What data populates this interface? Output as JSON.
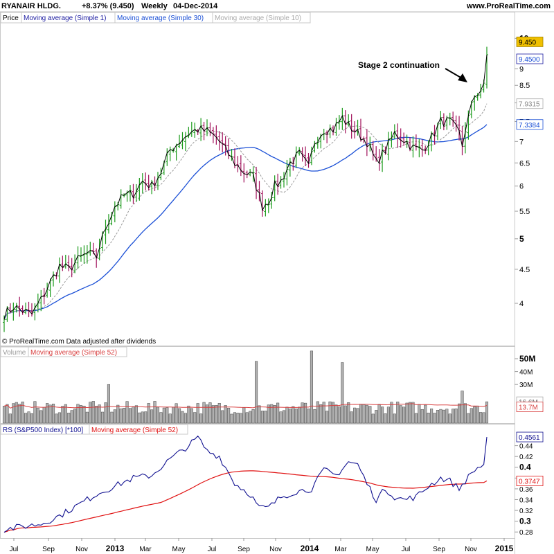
{
  "header": {
    "symbol": "RYANAIR HLDG.",
    "change": "+8.37% (9.450)",
    "period": "Weekly",
    "date": "04-Dec-2014",
    "site": "www.ProRealTime.com"
  },
  "panels": {
    "price": {
      "tabs": [
        "Price",
        "Moving average (Simple 1)",
        "Moving average (Simple 30)",
        "Moving average (Simple 10)"
      ],
      "footer": "© ProRealTime.com  Data adjusted after dividends",
      "annotation": "Stage 2 continuation",
      "value_labels": [
        "9.450",
        "9.4500",
        "7.9315",
        "7.3384"
      ]
    },
    "volume": {
      "tabs": [
        "Volume",
        "Moving average (Simple 52)"
      ],
      "value_labels": [
        "16.6M",
        "13.7M"
      ]
    },
    "rs": {
      "tabs": [
        "RS (S&P500 Index) [*100]",
        "Moving average (Simple 52)"
      ],
      "value_labels": [
        "0.4561",
        "0.3747"
      ]
    }
  },
  "colors": {
    "up": "#1a9a1a",
    "down": "#a0105a",
    "close_line": "#000000",
    "ma30": "#1a4fd6",
    "ma10": "#999999",
    "volume_bar": "#b0b0b0",
    "volume_ma": "#d84040",
    "rs_line": "#101090",
    "rs_ma": "#e01010",
    "highlight": "#f0c000"
  },
  "chart_data": [
    {
      "type": "line",
      "panel": "price",
      "title": "RYANAIR HLDG.",
      "y_scale": "log",
      "ylim": [
        3.6,
        10.5
      ],
      "yticks": [
        4,
        4.5,
        5,
        5.5,
        6,
        6.5,
        7,
        7.5,
        8,
        8.5,
        9,
        10
      ],
      "x_labels": [
        "Jul",
        "Sep",
        "Nov",
        "2013",
        "Mar",
        "May",
        "Jul",
        "Sep",
        "Nov",
        "2014",
        "Mar",
        "May",
        "Jul",
        "Sep",
        "Nov",
        "2015"
      ],
      "price_anchors": [
        [
          0,
          3.85
        ],
        [
          3,
          3.95
        ],
        [
          6,
          3.9
        ],
        [
          9,
          3.85
        ],
        [
          12,
          4.05
        ],
        [
          15,
          4.3
        ],
        [
          18,
          4.55
        ],
        [
          21,
          4.5
        ],
        [
          24,
          4.65
        ],
        [
          27,
          4.75
        ],
        [
          30,
          4.7
        ],
        [
          33,
          5.2
        ],
        [
          36,
          5.6
        ],
        [
          39,
          5.8
        ],
        [
          42,
          5.85
        ],
        [
          45,
          6.1
        ],
        [
          48,
          6.0
        ],
        [
          51,
          6.3
        ],
        [
          54,
          6.8
        ],
        [
          57,
          7.0
        ],
        [
          60,
          7.2
        ],
        [
          63,
          7.3
        ],
        [
          66,
          7.25
        ],
        [
          69,
          7.1
        ],
        [
          72,
          6.8
        ],
        [
          75,
          6.5
        ],
        [
          78,
          6.3
        ],
        [
          81,
          6.2
        ],
        [
          84,
          5.6
        ],
        [
          86,
          5.7
        ],
        [
          88,
          6.0
        ],
        [
          90,
          6.1
        ],
        [
          93,
          6.5
        ],
        [
          96,
          6.7
        ],
        [
          99,
          6.4
        ],
        [
          101,
          7.0
        ],
        [
          104,
          7.3
        ],
        [
          107,
          7.3
        ],
        [
          110,
          7.6
        ],
        [
          112,
          7.4
        ],
        [
          115,
          7.2
        ],
        [
          118,
          7.0
        ],
        [
          121,
          6.5
        ],
        [
          124,
          6.8
        ],
        [
          127,
          7.2
        ],
        [
          130,
          7.05
        ],
        [
          133,
          6.85
        ],
        [
          136,
          6.8
        ],
        [
          139,
          7.1
        ],
        [
          142,
          7.5
        ],
        [
          145,
          7.5
        ],
        [
          148,
          7.2
        ],
        [
          149,
          6.9
        ],
        [
          150,
          7.3
        ],
        [
          153,
          8.2
        ],
        [
          156,
          8.45
        ],
        [
          157,
          9.45
        ]
      ],
      "series": [
        {
          "name": "Moving average (Simple 1)"
        },
        {
          "name": "Moving average (Simple 30)",
          "last": 7.3384
        },
        {
          "name": "Moving average (Simple 10)",
          "last": 7.9315
        }
      ],
      "last_price": 9.45
    },
    {
      "type": "bar",
      "panel": "volume",
      "title": "Volume",
      "ylim": [
        0,
        50
      ],
      "yticks_labels": [
        "50M",
        "40M",
        "30M"
      ],
      "series": [
        {
          "name": "Moving average (Simple 52)",
          "last": 13.7
        }
      ],
      "last_volume": 16.6,
      "spikes": [
        [
          34,
          30
        ],
        [
          82,
          48
        ],
        [
          100,
          56
        ],
        [
          110,
          47
        ],
        [
          149,
          25
        ]
      ]
    },
    {
      "type": "line",
      "panel": "rs",
      "title": "RS (S&P500 Index) [*100]",
      "ylim": [
        0.27,
        0.46
      ],
      "yticks": [
        0.28,
        0.3,
        0.32,
        0.34,
        0.36,
        0.38,
        0.4,
        0.42,
        0.44
      ],
      "rs_anchors": [
        [
          0,
          0.285
        ],
        [
          6,
          0.29
        ],
        [
          12,
          0.295
        ],
        [
          18,
          0.31
        ],
        [
          24,
          0.33
        ],
        [
          30,
          0.35
        ],
        [
          36,
          0.365
        ],
        [
          42,
          0.38
        ],
        [
          48,
          0.385
        ],
        [
          54,
          0.415
        ],
        [
          60,
          0.44
        ],
        [
          63,
          0.455
        ],
        [
          66,
          0.43
        ],
        [
          70,
          0.42
        ],
        [
          75,
          0.37
        ],
        [
          80,
          0.35
        ],
        [
          83,
          0.325
        ],
        [
          86,
          0.325
        ],
        [
          90,
          0.345
        ],
        [
          95,
          0.355
        ],
        [
          100,
          0.36
        ],
        [
          104,
          0.395
        ],
        [
          108,
          0.385
        ],
        [
          112,
          0.41
        ],
        [
          115,
          0.405
        ],
        [
          118,
          0.37
        ],
        [
          121,
          0.34
        ],
        [
          124,
          0.36
        ],
        [
          127,
          0.345
        ],
        [
          130,
          0.34
        ],
        [
          134,
          0.345
        ],
        [
          138,
          0.365
        ],
        [
          142,
          0.38
        ],
        [
          145,
          0.375
        ],
        [
          148,
          0.36
        ],
        [
          150,
          0.375
        ],
        [
          153,
          0.395
        ],
        [
          156,
          0.405
        ],
        [
          157,
          0.4561
        ]
      ],
      "series": [
        {
          "name": "RS (S&P500 Index) [*100]",
          "last": 0.4561
        },
        {
          "name": "Moving average (Simple 52)",
          "last": 0.3747
        }
      ]
    }
  ]
}
